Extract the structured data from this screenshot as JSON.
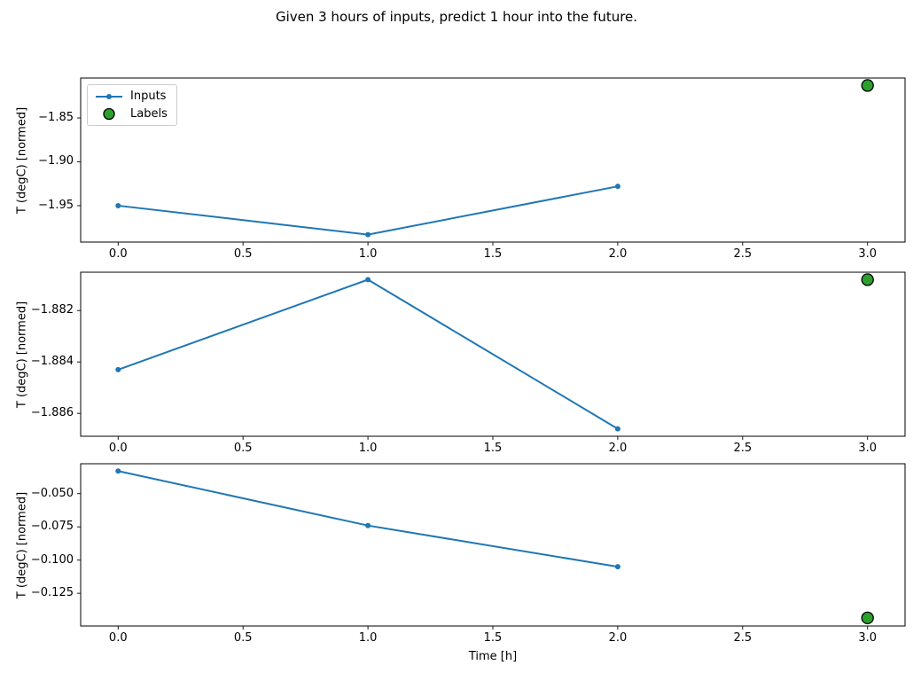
{
  "title": "Given 3 hours of inputs, predict 1 hour into the future.",
  "legend": {
    "inputs": "Inputs",
    "labels": "Labels"
  },
  "colors": {
    "inputs_line": "#1f77b4",
    "labels_fill": "#2ca02c",
    "labels_edge": "#000000",
    "axis": "#000000"
  },
  "chart_data": {
    "type": "line",
    "title": "Given 3 hours of inputs, predict 1 hour into the future.",
    "xlabel": "Time [h]",
    "xlim": [
      -0.15,
      3.15
    ],
    "grid": false,
    "legend_position": "upper left of first subplot",
    "x_ticks": {
      "values": [
        0,
        0.5,
        1,
        1.5,
        2,
        2.5,
        3
      ],
      "labels": [
        "0.0",
        "0.5",
        "1.0",
        "1.5",
        "2.0",
        "2.5",
        "3.0"
      ]
    },
    "subplots": [
      {
        "ylabel": "T (degC) [normed]",
        "ylim": [
          -1.9915,
          -1.8045
        ],
        "y_ticks": {
          "values": [
            -1.85,
            -1.9,
            -1.95
          ],
          "labels": [
            "−1.85",
            "−1.90",
            "−1.95"
          ]
        },
        "inputs": {
          "x": [
            0,
            1,
            2
          ],
          "y": [
            -1.95,
            -1.983,
            -1.928
          ]
        },
        "label_point": {
          "x": 3,
          "y": -1.813
        }
      },
      {
        "ylabel": "T (degC) [normed]",
        "ylim": [
          -1.88689,
          -1.88051
        ],
        "y_ticks": {
          "values": [
            -1.882,
            -1.884,
            -1.886
          ],
          "labels": [
            "−1.882",
            "−1.884",
            "−1.886"
          ]
        },
        "inputs": {
          "x": [
            0,
            1,
            2
          ],
          "y": [
            -1.8843,
            -1.8808,
            -1.8866
          ]
        },
        "label_point": {
          "x": 3,
          "y": -1.8808
        }
      },
      {
        "ylabel": "T (degC) [normed]",
        "ylim": [
          -0.1496,
          -0.0275
        ],
        "y_ticks": {
          "values": [
            -0.05,
            -0.075,
            -0.1,
            -0.125
          ],
          "labels": [
            "−0.050",
            "−0.075",
            "−0.100",
            "−0.125"
          ]
        },
        "inputs": {
          "x": [
            0,
            1,
            2
          ],
          "y": [
            -0.033,
            -0.074,
            -0.105
          ]
        },
        "label_point": {
          "x": 3,
          "y": -0.1435
        }
      }
    ]
  }
}
